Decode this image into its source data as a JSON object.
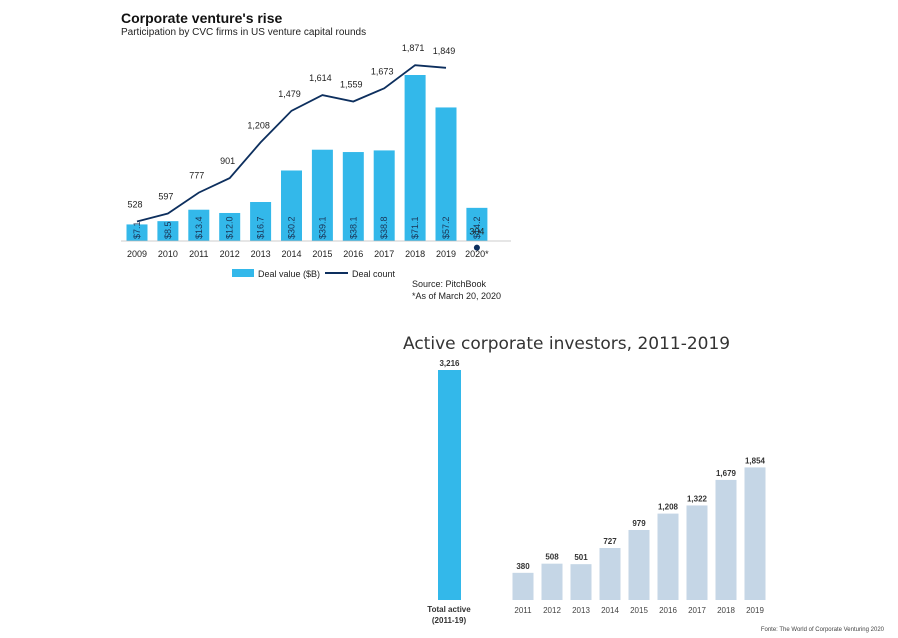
{
  "chart_data": [
    {
      "type": "bar",
      "title": "Corporate venture's rise",
      "subtitle": "Participation by CVC firms in US venture capital rounds",
      "categories": [
        "2009",
        "2010",
        "2011",
        "2012",
        "2013",
        "2014",
        "2015",
        "2016",
        "2017",
        "2018",
        "2019",
        "2020*"
      ],
      "series": [
        {
          "name": "Deal value ($B)",
          "type": "bar",
          "color": "#33b8ea",
          "values": [
            7.1,
            8.5,
            13.4,
            12.0,
            16.7,
            30.2,
            39.1,
            38.1,
            38.8,
            71.1,
            57.2,
            14.2
          ],
          "labels": [
            "$7.1",
            "$8.5",
            "$13.4",
            "$12.0",
            "$16.7",
            "$30.2",
            "$39.1",
            "$38.1",
            "$38.8",
            "$71.1",
            "$57.2",
            "$14.2"
          ]
        },
        {
          "name": "Deal count",
          "type": "line",
          "color": "#0d2f5e",
          "values": [
            528,
            597,
            777,
            901,
            1208,
            1479,
            1614,
            1559,
            1673,
            1871,
            1849,
            304
          ],
          "labels": [
            "528",
            "597",
            "777",
            "901",
            "1,208",
            "1,479",
            "1,614",
            "1,559",
            "1,673",
            "1,871",
            "1,849",
            "304"
          ]
        }
      ],
      "legend": [
        "Deal value ($B)",
        "Deal count"
      ],
      "source": "Source: PitchBook",
      "note": "*As of March 20, 2020"
    },
    {
      "type": "bar",
      "title": "Active corporate investors, 2011-2019",
      "total": {
        "label_line1": "Total active",
        "label_line2": "(2011-19)",
        "value": 3216,
        "value_label": "3,216",
        "color": "#33b8ea"
      },
      "categories": [
        "2011",
        "2012",
        "2013",
        "2014",
        "2015",
        "2016",
        "2017",
        "2018",
        "2019"
      ],
      "values": [
        380,
        508,
        501,
        727,
        979,
        1208,
        1322,
        1679,
        1854
      ],
      "labels": [
        "380",
        "508",
        "501",
        "727",
        "979",
        "1,208",
        "1,322",
        "1,679",
        "1,854"
      ],
      "color": "#c5d6e6",
      "source": "Fonte: The World of Corporate Venturing 2020"
    }
  ]
}
